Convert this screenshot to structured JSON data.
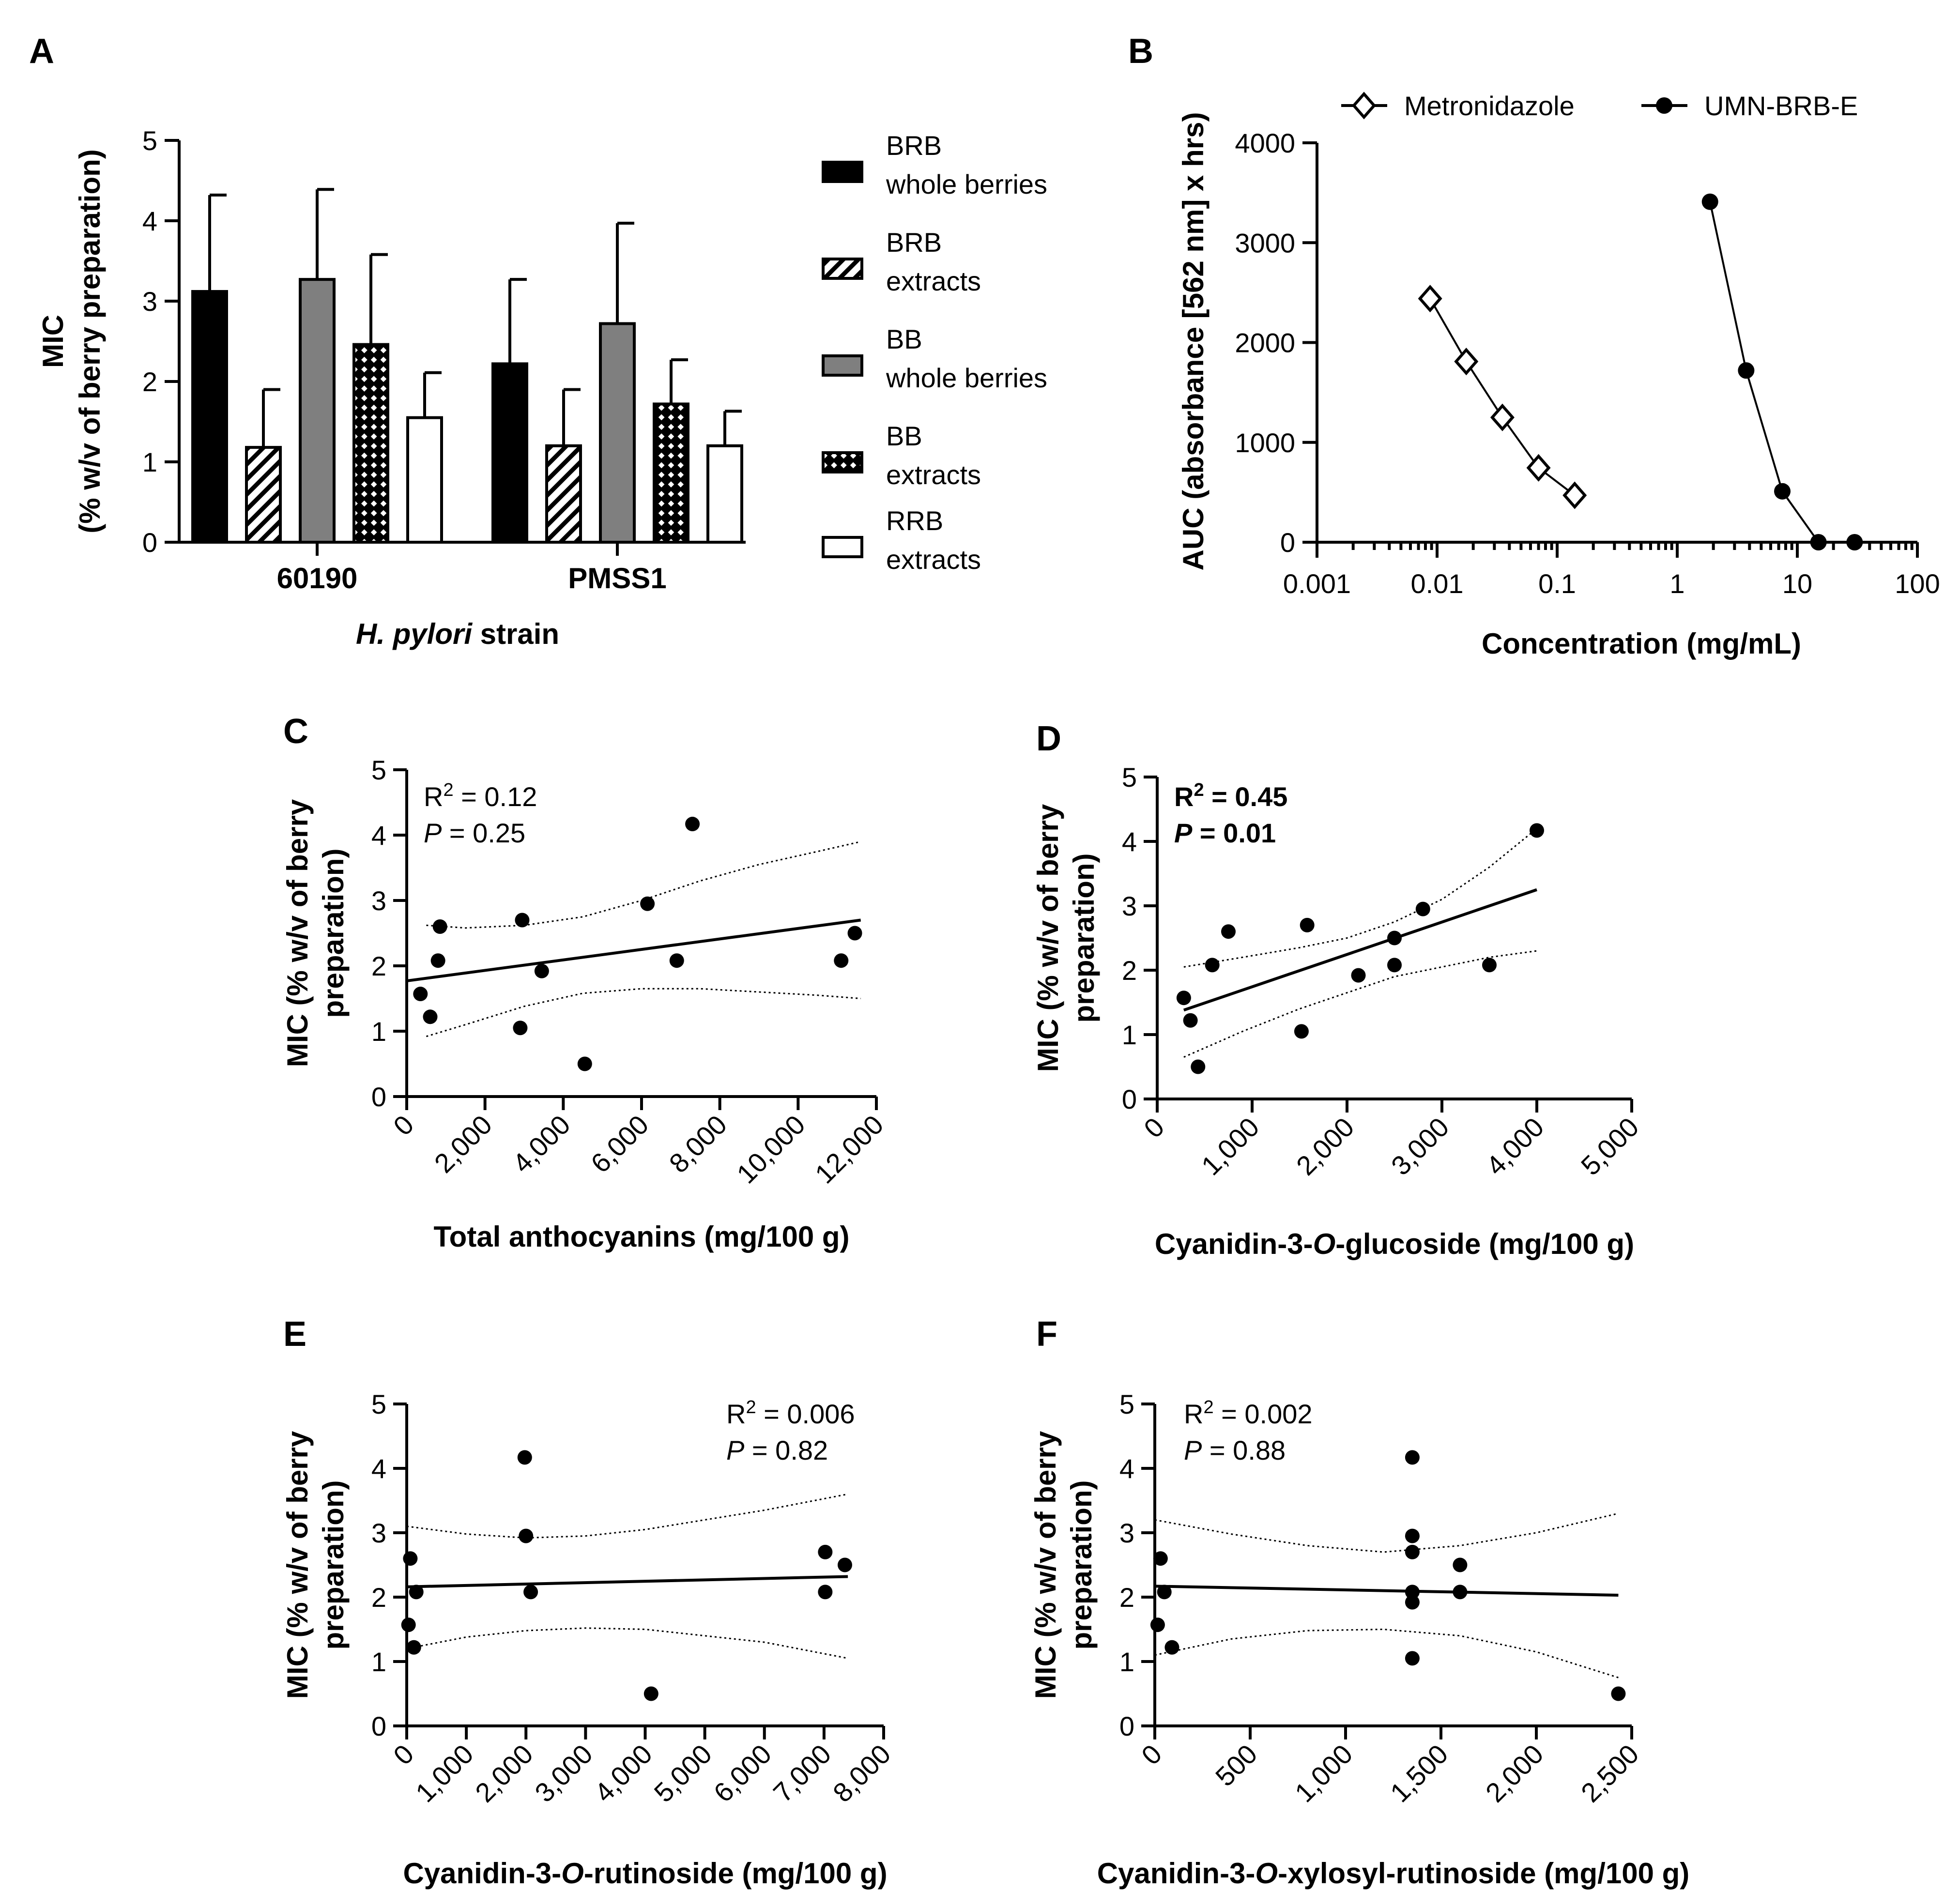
{
  "chart_data": [
    {
      "panel": "A",
      "type": "bar",
      "ylabel_line1": "MIC",
      "ylabel_line2": "(% w/v of berry preparation)",
      "xlabel_italic": "H. pylori",
      "xlabel_rest": " strain",
      "ylim": [
        0,
        5
      ],
      "yticks": [
        "0",
        "1",
        "2",
        "3",
        "4",
        "5"
      ],
      "categories": [
        "60190",
        "PMSS1"
      ],
      "series": [
        {
          "name": "BRB whole berries",
          "legend_line1": "BRB",
          "legend_line2": "whole berries",
          "pattern": "black",
          "values": [
            3.12,
            2.22
          ],
          "errors": [
            1.2,
            1.05
          ]
        },
        {
          "name": "BRB extracts",
          "legend_line1": "BRB",
          "legend_line2": "extracts",
          "pattern": "hatch",
          "values": [
            1.18,
            1.2
          ],
          "errors": [
            0.72,
            0.7
          ]
        },
        {
          "name": "BB whole berries",
          "legend_line1": "BB",
          "legend_line2": "whole berries",
          "pattern": "gray",
          "values": [
            3.27,
            2.72
          ],
          "errors": [
            1.12,
            1.25
          ]
        },
        {
          "name": "BB extracts",
          "legend_line1": "BB",
          "legend_line2": "extracts",
          "pattern": "check",
          "values": [
            2.46,
            1.72
          ],
          "errors": [
            1.12,
            0.55
          ]
        },
        {
          "name": "RRB extracts",
          "legend_line1": "RRB",
          "legend_line2": "extracts",
          "pattern": "white",
          "values": [
            1.55,
            1.2
          ],
          "errors": [
            0.56,
            0.43
          ]
        }
      ]
    },
    {
      "panel": "B",
      "type": "line",
      "xscale": "log",
      "xlabel": "Concentration (mg/mL)",
      "ylabel": "AUC (absorbance [562 nm] x  hrs)",
      "xlim": [
        0.001,
        100
      ],
      "ylim": [
        0,
        4000
      ],
      "xticks": [
        "0.001",
        "0.01",
        "0.1",
        "1",
        "10",
        "100"
      ],
      "yticks": [
        "0",
        "1000",
        "2000",
        "3000",
        "4000"
      ],
      "series": [
        {
          "name": "Metronidazole",
          "marker": "open-diamond",
          "x": [
            0.00875,
            0.0175,
            0.035,
            0.07,
            0.14
          ],
          "y": [
            2440,
            1810,
            1250,
            745,
            470
          ]
        },
        {
          "name": "UMN-BRB-E",
          "marker": "filled-circle",
          "x": [
            1.875,
            3.75,
            7.5,
            15,
            30
          ],
          "y": [
            3410,
            1720,
            510,
            0,
            0
          ]
        }
      ]
    },
    {
      "panel": "C",
      "type": "scatter",
      "xlabel": "Total anthocyanins (mg/100 g)",
      "ylabel_line1": "MIC (% w/v of berry",
      "ylabel_line2": "preparation)",
      "xlim": [
        0,
        12000
      ],
      "ylim": [
        0,
        5
      ],
      "xticks": [
        "0",
        "2,000",
        "4,000",
        "6,000",
        "8,000",
        "10,000",
        "12,000"
      ],
      "yticks": [
        "0",
        "1",
        "2",
        "3",
        "4",
        "5"
      ],
      "r2_value": " = 0.12",
      "p_value": " = 0.25",
      "bold_stats": false,
      "x": [
        350,
        600,
        800,
        850,
        2900,
        2950,
        3450,
        4550,
        6150,
        6900,
        7300,
        11100,
        11450
      ],
      "y": [
        1.57,
        1.22,
        2.08,
        2.6,
        1.05,
        2.7,
        1.92,
        0.5,
        2.95,
        2.08,
        4.17,
        2.08,
        2.5
      ],
      "fit": {
        "x": [
          0,
          11600
        ],
        "y": [
          1.77,
          2.7
        ]
      },
      "ci_upper": {
        "x": [
          500,
          1500,
          3000,
          4500,
          6000,
          7500,
          9000,
          10500,
          11600
        ],
        "y": [
          2.62,
          2.58,
          2.62,
          2.75,
          3.0,
          3.3,
          3.55,
          3.75,
          3.9
        ]
      },
      "ci_lower": {
        "x": [
          500,
          1500,
          3000,
          4500,
          6000,
          7500,
          9000,
          10500,
          11600
        ],
        "y": [
          0.92,
          1.1,
          1.38,
          1.58,
          1.65,
          1.65,
          1.6,
          1.55,
          1.5
        ]
      }
    },
    {
      "panel": "D",
      "type": "scatter",
      "xlabel_pre": "Cyanidin-3-",
      "xlabel_italic": "O",
      "xlabel_post": "-glucoside (mg/100 g)",
      "ylabel_line1": "MIC (% w/v of berry",
      "ylabel_line2": "preparation)",
      "xlim": [
        0,
        5000
      ],
      "ylim": [
        0,
        5
      ],
      "xticks": [
        "0",
        "1,000",
        "2,000",
        "3,000",
        "4,000",
        "5,000"
      ],
      "yticks": [
        "0",
        "1",
        "2",
        "3",
        "4",
        "5"
      ],
      "r2_value": " = 0.45",
      "p_value": " = 0.01",
      "bold_stats": true,
      "x": [
        280,
        350,
        430,
        580,
        750,
        1520,
        1580,
        2120,
        2500,
        2500,
        2800,
        3500,
        4000
      ],
      "y": [
        1.57,
        1.22,
        0.5,
        2.08,
        2.6,
        1.05,
        2.7,
        1.92,
        2.08,
        2.5,
        2.95,
        2.08,
        4.17
      ],
      "fit": {
        "x": [
          280,
          4000
        ],
        "y": [
          1.38,
          3.25
        ]
      },
      "ci_upper": {
        "x": [
          280,
          900,
          1500,
          2000,
          2500,
          3000,
          3500,
          4000
        ],
        "y": [
          2.05,
          2.2,
          2.35,
          2.5,
          2.75,
          3.1,
          3.6,
          4.2
        ]
      },
      "ci_lower": {
        "x": [
          280,
          900,
          1500,
          2000,
          2500,
          3000,
          3500,
          4000
        ],
        "y": [
          0.65,
          1.05,
          1.4,
          1.65,
          1.9,
          2.05,
          2.2,
          2.3
        ]
      }
    },
    {
      "panel": "E",
      "type": "scatter",
      "xlabel_pre": "Cyanidin-3-",
      "xlabel_italic": "O",
      "xlabel_post": "-rutinoside (mg/100 g)",
      "ylabel_line1": "MIC (% w/v of berry",
      "ylabel_line2": "preparation)",
      "xlim": [
        0,
        8000
      ],
      "ylim": [
        0,
        5
      ],
      "xticks": [
        "0",
        "1,000",
        "2,000",
        "3,000",
        "4,000",
        "5,000",
        "6,000",
        "7,000",
        "8,000"
      ],
      "yticks": [
        "0",
        "1",
        "2",
        "3",
        "4",
        "5"
      ],
      "r2_value": " = 0.006",
      "p_value": " = 0.82",
      "bold_stats": false,
      "x": [
        30,
        60,
        120,
        160,
        1980,
        2000,
        2080,
        4100,
        7020,
        7020,
        7350
      ],
      "y": [
        1.57,
        2.6,
        1.22,
        2.08,
        4.17,
        2.95,
        2.08,
        0.5,
        2.7,
        2.08,
        2.5
      ],
      "fit": {
        "x": [
          0,
          7400
        ],
        "y": [
          2.16,
          2.32
        ]
      },
      "ci_upper": {
        "x": [
          0,
          1000,
          2000,
          3000,
          4000,
          5000,
          6000,
          7400
        ],
        "y": [
          3.1,
          2.98,
          2.92,
          2.95,
          3.05,
          3.2,
          3.35,
          3.6
        ]
      },
      "ci_lower": {
        "x": [
          0,
          1000,
          2000,
          3000,
          4000,
          5000,
          6000,
          7400
        ],
        "y": [
          1.2,
          1.38,
          1.48,
          1.52,
          1.5,
          1.4,
          1.3,
          1.05
        ]
      }
    },
    {
      "panel": "F",
      "type": "scatter",
      "xlabel_pre": "Cyanidin-3-",
      "xlabel_italic": "O",
      "xlabel_post": "-xylosyl-rutinoside (mg/100 g)",
      "ylabel_line1": "MIC (% w/v of berry",
      "ylabel_line2": "preparation)",
      "xlim": [
        0,
        2500
      ],
      "ylim": [
        0,
        5
      ],
      "xticks": [
        "0",
        "500",
        "1,000",
        "1,500",
        "2,000",
        "2,500"
      ],
      "yticks": [
        "0",
        "1",
        "2",
        "3",
        "4",
        "5"
      ],
      "r2_value": " = 0.002",
      "p_value": " = 0.88",
      "bold_stats": false,
      "x": [
        15,
        30,
        50,
        90,
        1350,
        1350,
        1350,
        1350,
        1350,
        1350,
        1600,
        1600,
        2430
      ],
      "y": [
        1.57,
        2.6,
        2.08,
        1.22,
        4.17,
        2.95,
        2.7,
        2.08,
        1.92,
        1.05,
        2.5,
        2.08,
        0.5
      ],
      "fit": {
        "x": [
          0,
          2430
        ],
        "y": [
          2.17,
          2.03
        ]
      },
      "ci_upper": {
        "x": [
          0,
          400,
          800,
          1200,
          1600,
          2000,
          2430
        ],
        "y": [
          3.2,
          2.98,
          2.8,
          2.7,
          2.8,
          3.0,
          3.3
        ]
      },
      "ci_lower": {
        "x": [
          0,
          400,
          800,
          1200,
          1600,
          2000,
          2430
        ],
        "y": [
          1.1,
          1.35,
          1.48,
          1.5,
          1.4,
          1.15,
          0.75
        ]
      }
    }
  ]
}
